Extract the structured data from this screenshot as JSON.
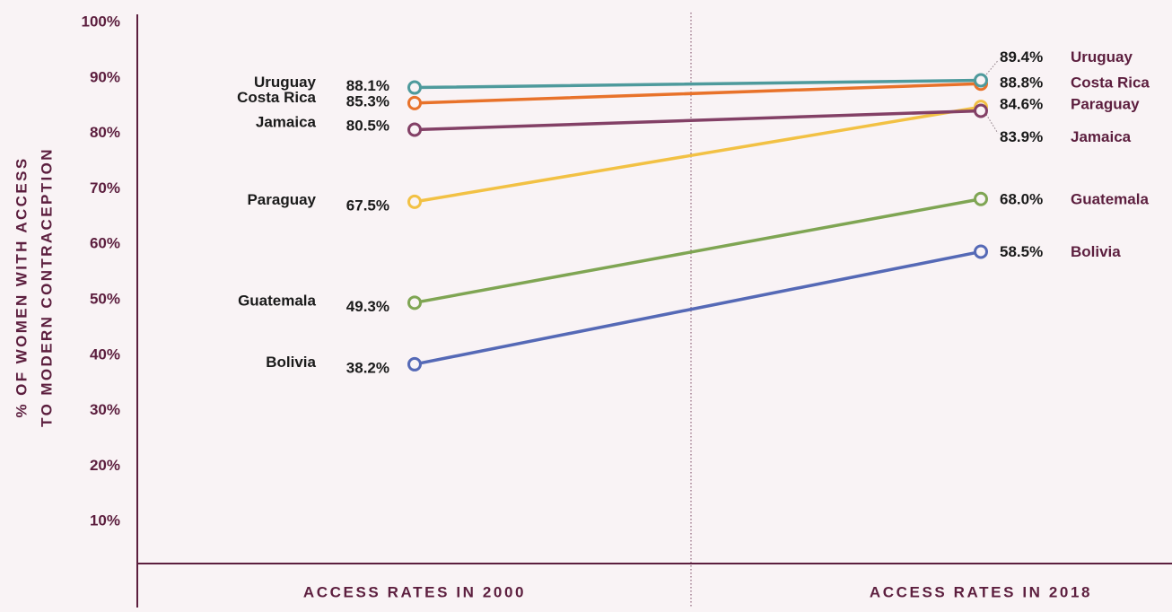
{
  "chart_data": {
    "type": "line",
    "chart_style": "slope",
    "ylabel": [
      "% OF WOMEN WITH ACCESS",
      "TO MODERN CONTRACEPTION"
    ],
    "ylim": [
      0,
      100
    ],
    "yticks": [
      "100%",
      "90%",
      "80%",
      "70%",
      "60%",
      "50%",
      "40%",
      "30%",
      "20%",
      "10%"
    ],
    "categories": [
      "ACCESS RATES IN 2000",
      "ACCESS RATES IN 2018"
    ],
    "series": [
      {
        "name": "Uruguay",
        "values": [
          88.1,
          89.4
        ],
        "labels": [
          "88.1%",
          "89.4%"
        ],
        "color": "#4e9a9c"
      },
      {
        "name": "Costa Rica",
        "values": [
          85.3,
          88.8
        ],
        "labels": [
          "85.3%",
          "88.8%"
        ],
        "color": "#e8722a"
      },
      {
        "name": "Jamaica",
        "values": [
          80.5,
          83.9
        ],
        "labels": [
          "80.5%",
          "83.9%"
        ],
        "color": "#834066"
      },
      {
        "name": "Paraguay",
        "values": [
          67.5,
          84.6
        ],
        "labels": [
          "67.5%",
          "84.6%"
        ],
        "color": "#f2c144"
      },
      {
        "name": "Guatemala",
        "values": [
          49.3,
          68.0
        ],
        "labels": [
          "49.3%",
          "68.0%"
        ],
        "color": "#7fa553"
      },
      {
        "name": "Bolivia",
        "values": [
          38.2,
          58.5
        ],
        "labels": [
          "38.2%",
          "58.5%"
        ],
        "color": "#5569b6"
      }
    ],
    "colors": {
      "background": "#f9f3f5",
      "axis": "#5c1e3e",
      "text": "#1a1a1a"
    },
    "grid": false,
    "legend": "none (direct labels)"
  }
}
